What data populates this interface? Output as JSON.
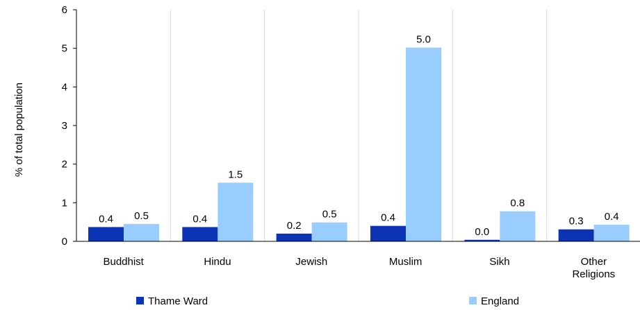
{
  "chart_data": {
    "type": "bar",
    "title": "",
    "xlabel": "",
    "ylabel": "% of total population",
    "ylim": [
      0,
      6
    ],
    "yticks": [
      0,
      1,
      2,
      3,
      4,
      5,
      6
    ],
    "grid": "vertical category separators",
    "legend_position": "bottom",
    "categories": [
      [
        "Buddhist"
      ],
      [
        "Hindu"
      ],
      [
        "Jewish"
      ],
      [
        "Muslim"
      ],
      [
        "Sikh"
      ],
      [
        "Other",
        "Religions"
      ]
    ],
    "series": [
      {
        "name": "Thame Ward",
        "color": "#0b33b4",
        "values": [
          0.37,
          0.37,
          0.2,
          0.4,
          0.04,
          0.31
        ],
        "labels": [
          "0.4",
          "0.4",
          "0.2",
          "0.4",
          "0.0",
          "0.3"
        ]
      },
      {
        "name": "England",
        "color": "#99ccff",
        "values": [
          0.45,
          1.52,
          0.49,
          5.02,
          0.78,
          0.43
        ],
        "labels": [
          "0.5",
          "1.5",
          "0.5",
          "5.0",
          "0.8",
          "0.4"
        ]
      }
    ]
  }
}
